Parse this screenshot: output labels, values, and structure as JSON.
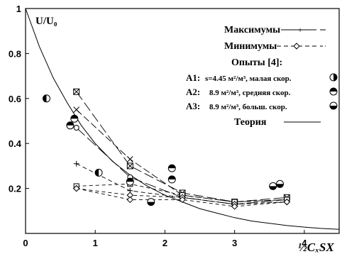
{
  "chart_data": {
    "type": "scatter",
    "title": "",
    "ylabel": "U/U₀",
    "xlabel": "½CₓSX",
    "xlim": [
      0,
      4.5
    ],
    "ylim": [
      0,
      1.0
    ],
    "x_ticks": [
      "0",
      "1",
      "2",
      "3",
      "4"
    ],
    "y_ticks": [
      "0.2",
      "0.4",
      "0.6",
      "0.8",
      "1"
    ],
    "grid": false,
    "legend": {
      "maxima": "Максимумы",
      "minima": "Минимумы",
      "experiments_header": "Опыты [4]:",
      "a1_label": "A1:",
      "a1_text": "s=4.45 м²/м³, малая скор.",
      "a2_label": "A2:",
      "a2_text": "8.9 м²/м³, средняя скор.",
      "a3_label": "A3:",
      "a3_text": "8.9 м²/м³, больш. скор.",
      "theory": "Теория"
    },
    "theory_curve": {
      "name": "Теория",
      "x": [
        0,
        0.2,
        0.4,
        0.6,
        0.8,
        1.0,
        1.25,
        1.5,
        1.75,
        2.0,
        2.25,
        2.5,
        2.75,
        3.0,
        3.25,
        3.5,
        3.75,
        4.0,
        4.25,
        4.5
      ],
      "y": [
        1.0,
        0.83,
        0.69,
        0.58,
        0.48,
        0.4,
        0.32,
        0.26,
        0.21,
        0.17,
        0.14,
        0.11,
        0.09,
        0.07,
        0.055,
        0.045,
        0.035,
        0.028,
        0.022,
        0.018
      ]
    },
    "maxima_series": [
      {
        "x": [
          0.73,
          1.5,
          2.25,
          3.0,
          3.75
        ],
        "y": [
          0.63,
          0.3,
          0.18,
          0.14,
          0.16
        ]
      },
      {
        "x": [
          0.73,
          1.5,
          2.25,
          3.0,
          3.75
        ],
        "y": [
          0.55,
          0.33,
          0.17,
          0.14,
          0.15
        ]
      },
      {
        "x": [
          0.73,
          1.5,
          2.25,
          3.0,
          3.75
        ],
        "y": [
          0.47,
          0.25,
          0.16,
          0.13,
          0.15
        ]
      },
      {
        "x": [
          0.73,
          1.5,
          2.25,
          3.0,
          3.75
        ],
        "y": [
          0.31,
          0.19,
          0.16,
          0.13,
          0.14
        ]
      }
    ],
    "minima_series": [
      {
        "x": [
          0.73,
          1.5,
          2.25,
          3.0,
          3.75
        ],
        "y": [
          0.21,
          0.22,
          0.17,
          0.14,
          0.15
        ]
      },
      {
        "x": [
          0.73,
          1.5,
          2.25,
          3.0,
          3.75
        ],
        "y": [
          0.2,
          0.17,
          0.16,
          0.13,
          0.14
        ]
      },
      {
        "x": [
          0.73,
          1.5,
          2.25,
          3.0,
          3.75
        ],
        "y": [
          0.2,
          0.15,
          0.15,
          0.12,
          0.14
        ]
      }
    ],
    "experiments": [
      {
        "group": "A1",
        "x": 0.3,
        "y": 0.6
      },
      {
        "group": "A1",
        "x": 1.05,
        "y": 0.27
      },
      {
        "group": "A2",
        "x": 0.64,
        "y": 0.48
      },
      {
        "group": "A2",
        "x": 0.7,
        "y": 0.51
      },
      {
        "group": "A2",
        "x": 1.5,
        "y": 0.23
      },
      {
        "group": "A2",
        "x": 2.1,
        "y": 0.29
      },
      {
        "group": "A2",
        "x": 2.1,
        "y": 0.24
      },
      {
        "group": "A3",
        "x": 1.8,
        "y": 0.14
      },
      {
        "group": "A3",
        "x": 3.55,
        "y": 0.21
      },
      {
        "group": "A3",
        "x": 3.65,
        "y": 0.22
      }
    ]
  }
}
